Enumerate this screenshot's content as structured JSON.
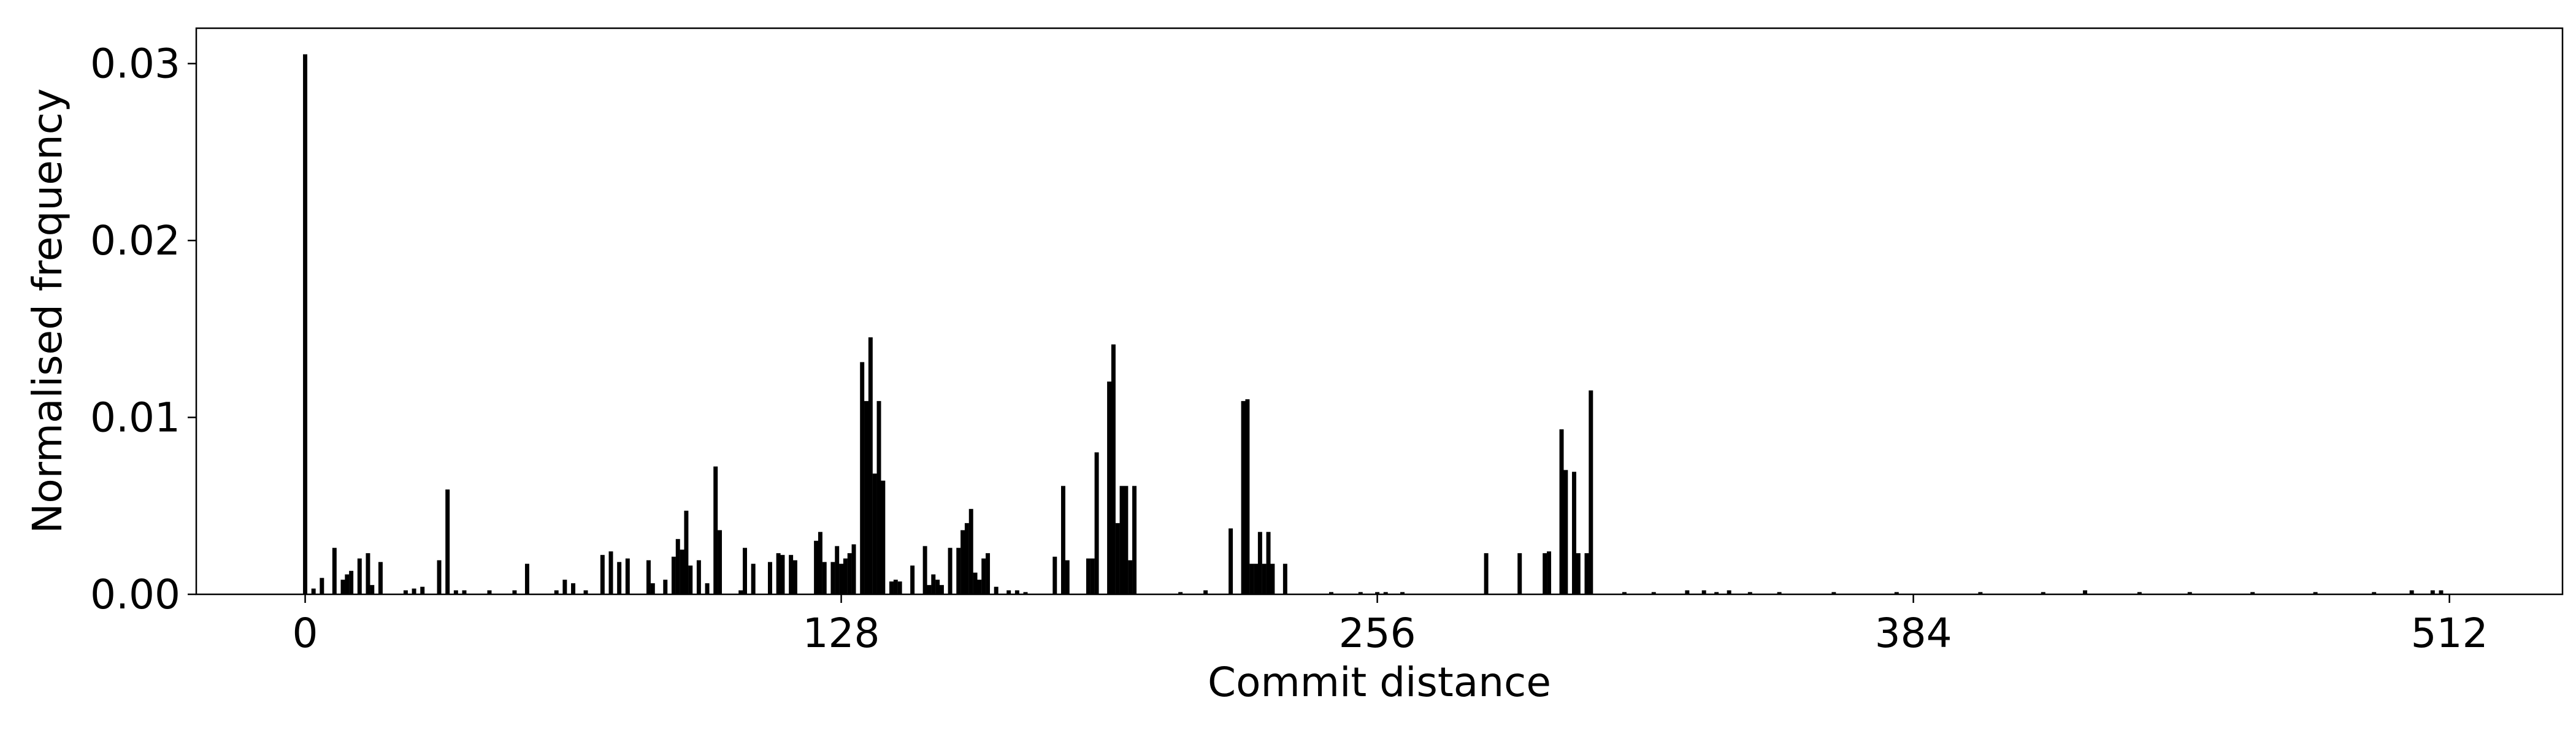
{
  "chart_data": {
    "type": "bar",
    "xlabel": "Commit distance",
    "ylabel": "Normalised frequency",
    "color": "#000000",
    "xlim": [
      -26,
      539
    ],
    "ylim": [
      0,
      0.032
    ],
    "xticks": [
      0,
      128,
      256,
      384,
      512
    ],
    "yticks": [
      {
        "value": 0,
        "label": "0.00"
      },
      0.01,
      0.02,
      0.03
    ],
    "x": [
      0,
      2,
      4,
      7,
      9,
      10,
      11,
      13,
      15,
      16,
      18,
      24,
      26,
      28,
      32,
      34,
      36,
      38,
      44,
      50,
      53,
      60,
      62,
      64,
      67,
      71,
      73,
      75,
      77,
      82,
      83,
      86,
      88,
      89,
      90,
      91,
      92,
      94,
      96,
      98,
      99,
      104,
      105,
      107,
      111,
      113,
      114,
      116,
      117,
      122,
      123,
      124,
      126,
      127,
      128,
      129,
      130,
      131,
      133,
      134,
      135,
      136,
      137,
      138,
      140,
      141,
      142,
      145,
      148,
      149,
      150,
      151,
      152,
      154,
      156,
      157,
      158,
      159,
      160,
      161,
      162,
      163,
      165,
      168,
      170,
      172,
      179,
      181,
      182,
      187,
      188,
      189,
      192,
      193,
      194,
      195,
      196,
      197,
      198,
      209,
      215,
      221,
      224,
      225,
      226,
      227,
      228,
      229,
      230,
      231,
      234,
      245,
      252,
      256,
      258,
      262,
      282,
      290,
      296,
      297,
      300,
      301,
      303,
      304,
      306,
      307,
      315,
      322,
      330,
      334,
      337,
      340,
      345,
      352,
      365,
      380,
      400,
      415,
      425,
      438,
      450,
      465,
      480,
      494,
      503,
      508,
      510
    ],
    "values": [
      0.0305,
      0.0003,
      0.0009,
      0.0026,
      0.0008,
      0.0011,
      0.0013,
      0.002,
      0.0023,
      0.0005,
      0.0018,
      0.0002,
      0.0003,
      0.0004,
      0.0019,
      0.0059,
      0.0002,
      0.0002,
      0.0002,
      0.0002,
      0.0017,
      0.0002,
      0.0008,
      0.0006,
      0.0002,
      0.0022,
      0.0024,
      0.0018,
      0.002,
      0.0019,
      0.0006,
      0.0008,
      0.0021,
      0.0031,
      0.0025,
      0.0047,
      0.0016,
      0.0019,
      0.0006,
      0.0072,
      0.0036,
      0.0002,
      0.0026,
      0.0017,
      0.0018,
      0.0023,
      0.0022,
      0.0022,
      0.0019,
      0.003,
      0.0035,
      0.0018,
      0.0018,
      0.0027,
      0.0017,
      0.002,
      0.0023,
      0.0028,
      0.0131,
      0.0109,
      0.0145,
      0.0068,
      0.0109,
      0.0064,
      0.0007,
      0.0008,
      0.0007,
      0.0016,
      0.0027,
      0.0005,
      0.0011,
      0.0008,
      0.0005,
      0.0026,
      0.0026,
      0.0036,
      0.004,
      0.0048,
      0.0012,
      0.0008,
      0.002,
      0.0023,
      0.0004,
      0.0002,
      0.0002,
      0.0001,
      0.0021,
      0.0061,
      0.0019,
      0.002,
      0.002,
      0.008,
      0.012,
      0.0141,
      0.004,
      0.0061,
      0.0061,
      0.0019,
      0.0061,
      0.0001,
      0.0002,
      0.0037,
      0.0109,
      0.011,
      0.0017,
      0.0017,
      0.0035,
      0.0017,
      0.0035,
      0.0017,
      0.0017,
      0.0001,
      0.0001,
      0.0001,
      0.0001,
      0.0001,
      0.0023,
      0.0023,
      0.0023,
      0.0024,
      0.0093,
      0.007,
      0.0069,
      0.0023,
      0.0023,
      0.0115,
      0.0001,
      0.0001,
      0.0002,
      0.0002,
      0.0001,
      0.0002,
      0.0001,
      0.0001,
      0.0001,
      0.0001,
      0.0001,
      0.0001,
      0.0002,
      0.0001,
      0.0001,
      0.0001,
      0.0001,
      0.0001,
      0.0002,
      0.0002,
      0.0002
    ]
  }
}
